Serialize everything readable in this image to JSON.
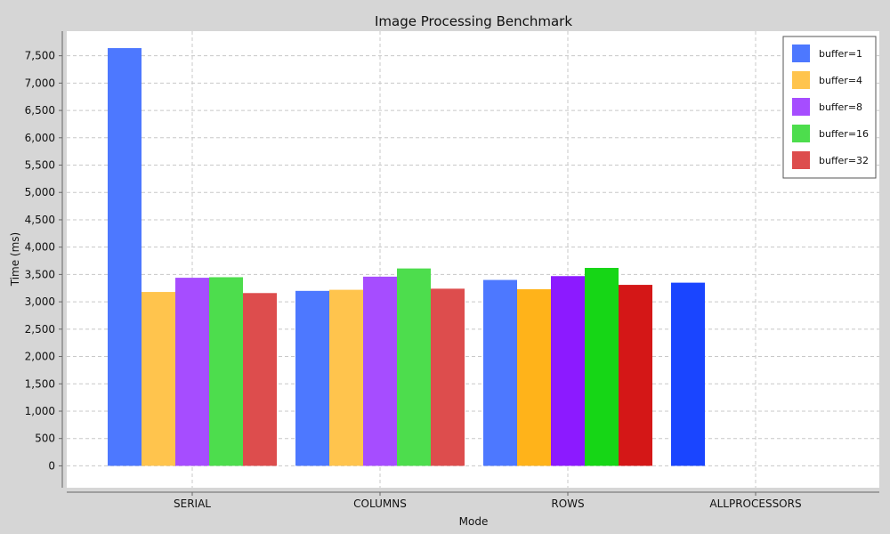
{
  "chart_data": {
    "type": "bar",
    "title": "Image Processing Benchmark",
    "xlabel": "Mode",
    "ylabel": "Time (ms)",
    "ylim": [
      -400,
      7950
    ],
    "yticks": [
      0,
      500,
      1000,
      1500,
      2000,
      2500,
      3000,
      3500,
      4000,
      4500,
      5000,
      5500,
      6000,
      6500,
      7000,
      7500
    ],
    "ytick_labels": [
      "0",
      "500",
      "1,000",
      "1,500",
      "2,000",
      "2,500",
      "3,000",
      "3,500",
      "4,000",
      "4,500",
      "5,000",
      "5,500",
      "6,000",
      "6,500",
      "7,000",
      "7,500"
    ],
    "categories": [
      "SERIAL",
      "COLUMNS",
      "ROWS",
      "ALLPROCESSORS"
    ],
    "grid": true,
    "legend_position": "top-right",
    "series": [
      {
        "name": "buffer=1",
        "values": [
          7640,
          3200,
          3400,
          3350
        ]
      },
      {
        "name": "buffer=4",
        "values": [
          3180,
          3220,
          3230,
          null
        ]
      },
      {
        "name": "buffer=8",
        "values": [
          3440,
          3460,
          3470,
          null
        ]
      },
      {
        "name": "buffer=16",
        "values": [
          3450,
          3610,
          3620,
          null
        ]
      },
      {
        "name": "buffer=32",
        "values": [
          3160,
          3240,
          3310,
          null
        ]
      }
    ],
    "colors": {
      "legend": [
        "#4d78ff",
        "#ffc44d",
        "#a64dff",
        "#4ddd4d",
        "#dd4d4d"
      ],
      "bars": [
        [
          "#4d78ff",
          "#4d78ff",
          "#4d78ff",
          "#1a45ff"
        ],
        [
          "#ffc44d",
          "#ffc44d",
          "#ffb31a",
          null
        ],
        [
          "#a64dff",
          "#a64dff",
          "#8c1aff",
          null
        ],
        [
          "#4ddd4d",
          "#4ddd4d",
          "#16d616",
          null
        ],
        [
          "#dd4d4d",
          "#dd4d4d",
          "#d41717",
          null
        ]
      ]
    }
  }
}
